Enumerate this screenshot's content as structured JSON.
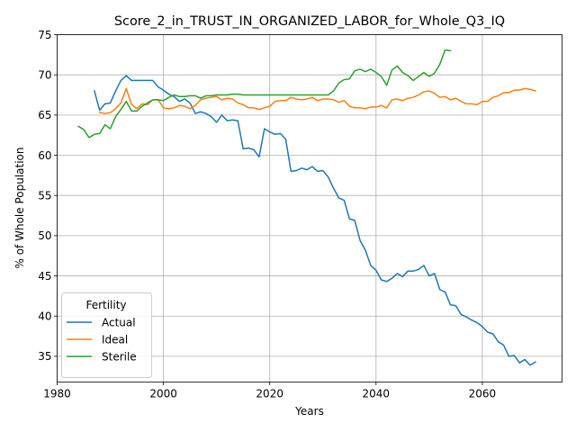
{
  "chart_data": {
    "type": "line",
    "title": "Score_2_in_TRUST_IN_ORGANIZED_LABOR_for_Whole_Q3_IQ",
    "xlabel": "Years",
    "ylabel": "% of Whole Population",
    "xlim": [
      1980,
      2075
    ],
    "ylim": [
      31.8,
      75
    ],
    "xticks": [
      1980,
      2000,
      2020,
      2040,
      2060
    ],
    "yticks": [
      35,
      40,
      45,
      50,
      55,
      60,
      65,
      70,
      75
    ],
    "grid": true,
    "legend": {
      "title": "Fertility",
      "placement": "lower-left"
    },
    "series": [
      {
        "name": "Actual",
        "color": "#1f77b4",
        "x": [
          1987,
          1988,
          1989,
          1990,
          1991,
          1992,
          1993,
          1994,
          1995,
          1996,
          1997,
          1998,
          1999,
          2000,
          2001,
          2002,
          2003,
          2004,
          2005,
          2006,
          2007,
          2008,
          2009,
          2010,
          2011,
          2012,
          2013,
          2014,
          2015,
          2016,
          2017,
          2018,
          2019,
          2020,
          2021,
          2022,
          2023,
          2024,
          2025,
          2026,
          2027,
          2028,
          2029,
          2030,
          2031,
          2032,
          2033,
          2034,
          2035,
          2036,
          2037,
          2038,
          2039,
          2040,
          2041,
          2042,
          2043,
          2044,
          2045,
          2046,
          2047,
          2048,
          2049,
          2050,
          2051,
          2052,
          2053,
          2054,
          2055,
          2056,
          2057,
          2058,
          2059,
          2060,
          2061,
          2062,
          2063,
          2064,
          2065,
          2066,
          2067,
          2068,
          2069,
          2070
        ],
        "values": [
          68.0,
          65.6,
          66.4,
          66.5,
          68.0,
          69.3,
          69.9,
          69.3,
          69.3,
          69.3,
          69.3,
          69.3,
          68.5,
          68.1,
          67.6,
          67.3,
          66.7,
          67.0,
          66.5,
          65.2,
          65.4,
          65.2,
          64.8,
          64.1,
          65.0,
          64.3,
          64.4,
          64.3,
          60.8,
          60.9,
          60.7,
          59.8,
          63.3,
          62.9,
          62.6,
          62.7,
          62.0,
          58.0,
          58.1,
          58.4,
          58.2,
          58.6,
          58.0,
          58.1,
          57.3,
          55.9,
          54.7,
          54.4,
          52.1,
          51.9,
          49.4,
          48.2,
          46.3,
          45.7,
          44.5,
          44.3,
          44.7,
          45.3,
          44.9,
          45.6,
          45.6,
          45.8,
          46.3,
          45.0,
          45.3,
          43.3,
          43.0,
          41.4,
          41.3,
          40.2,
          39.9,
          39.5,
          39.2,
          38.7,
          38.0,
          37.8,
          36.8,
          36.4,
          35.0,
          35.1,
          34.2,
          34.6,
          33.9,
          34.3
        ]
      },
      {
        "name": "Ideal",
        "color": "#ff7f0e",
        "x": [
          1988,
          1989,
          1990,
          1991,
          1992,
          1993,
          1994,
          1995,
          1996,
          1997,
          1998,
          1999,
          2000,
          2001,
          2002,
          2003,
          2004,
          2005,
          2006,
          2007,
          2008,
          2009,
          2010,
          2011,
          2012,
          2013,
          2014,
          2015,
          2016,
          2017,
          2018,
          2019,
          2020,
          2021,
          2022,
          2023,
          2024,
          2025,
          2026,
          2027,
          2028,
          2029,
          2030,
          2031,
          2032,
          2033,
          2034,
          2035,
          2036,
          2037,
          2038,
          2039,
          2040,
          2041,
          2042,
          2043,
          2044,
          2045,
          2046,
          2047,
          2048,
          2049,
          2050,
          2051,
          2052,
          2053,
          2054,
          2055,
          2056,
          2057,
          2058,
          2059,
          2060,
          2061,
          2062,
          2063,
          2064,
          2065,
          2066,
          2067,
          2068,
          2069,
          2070
        ],
        "values": [
          65.3,
          65.2,
          65.3,
          65.8,
          66.5,
          68.3,
          66.3,
          65.8,
          66.4,
          66.3,
          66.9,
          66.9,
          65.9,
          65.8,
          65.9,
          66.2,
          66.1,
          65.8,
          66.2,
          66.9,
          67.1,
          67.2,
          67.3,
          66.9,
          67.1,
          67.0,
          66.5,
          66.3,
          65.9,
          65.9,
          65.7,
          65.9,
          66.1,
          66.7,
          66.8,
          66.8,
          67.2,
          67.0,
          66.9,
          67.0,
          67.2,
          66.8,
          67.0,
          67.0,
          66.9,
          66.6,
          66.8,
          66.1,
          65.9,
          65.9,
          65.8,
          66.0,
          66.0,
          66.2,
          65.9,
          66.9,
          67.0,
          66.8,
          67.1,
          67.2,
          67.5,
          67.9,
          68.0,
          67.7,
          67.2,
          67.3,
          66.9,
          67.1,
          66.7,
          66.4,
          66.4,
          66.3,
          66.7,
          66.7,
          67.2,
          67.4,
          67.8,
          67.8,
          68.1,
          68.1,
          68.3,
          68.2,
          68.0
        ]
      },
      {
        "name": "Sterile",
        "color": "#2ca02c",
        "x": [
          1984,
          1985,
          1986,
          1987,
          1988,
          1989,
          1990,
          1991,
          1992,
          1993,
          1994,
          1995,
          1996,
          1997,
          1998,
          1999,
          2000,
          2001,
          2002,
          2003,
          2004,
          2005,
          2006,
          2007,
          2008,
          2009,
          2010,
          2011,
          2012,
          2013,
          2014,
          2015,
          2016,
          2017,
          2018,
          2019,
          2020,
          2021,
          2022,
          2023,
          2024,
          2025,
          2026,
          2027,
          2028,
          2029,
          2030,
          2031,
          2032,
          2033,
          2034,
          2035,
          2036,
          2037,
          2038,
          2039,
          2040,
          2041,
          2042,
          2043,
          2044,
          2045,
          2046,
          2047,
          2048,
          2049,
          2050,
          2051,
          2052,
          2053,
          2054
        ],
        "values": [
          63.6,
          63.2,
          62.2,
          62.6,
          62.7,
          63.8,
          63.3,
          64.8,
          65.7,
          66.7,
          65.5,
          65.5,
          66.1,
          66.5,
          66.9,
          66.9,
          66.8,
          67.2,
          67.5,
          67.3,
          67.3,
          67.4,
          67.4,
          67.1,
          67.4,
          67.4,
          67.5,
          67.5,
          67.5,
          67.6,
          67.6,
          67.5,
          67.5,
          67.5,
          67.5,
          67.5,
          67.5,
          67.5,
          67.5,
          67.5,
          67.5,
          67.5,
          67.5,
          67.5,
          67.5,
          67.5,
          67.5,
          67.5,
          68.0,
          69.0,
          69.4,
          69.5,
          70.5,
          70.7,
          70.4,
          70.7,
          70.3,
          69.8,
          68.7,
          70.6,
          71.1,
          70.3,
          69.9,
          69.3,
          69.8,
          70.3,
          69.8,
          70.2,
          71.3,
          73.1,
          73.0
        ]
      }
    ]
  }
}
